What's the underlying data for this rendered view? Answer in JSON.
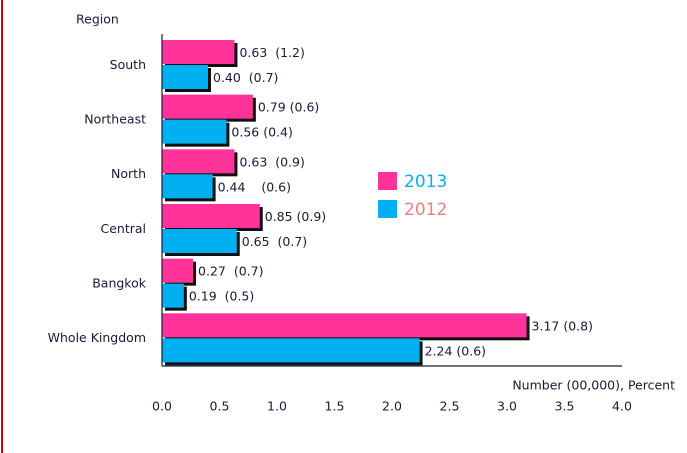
{
  "chart_data": {
    "type": "bar",
    "orientation": "horizontal",
    "y_axis_title": "Region",
    "x_axis_title": "Number (00,000), Percent",
    "categories": [
      "South",
      "Northeast",
      "North",
      "Central",
      "Bangkok",
      "Whole Kingdom"
    ],
    "series": [
      {
        "name": "2013",
        "color": "#ff3399",
        "values": [
          0.63,
          0.79,
          0.63,
          0.85,
          0.27,
          3.17
        ],
        "value_labels": [
          "0.63  (1.2)",
          "0.79 (0.6)",
          "0.63  (0.9)",
          "0.85 (0.9)",
          "0.27  (0.7)",
          "3.17 (0.8)"
        ]
      },
      {
        "name": "2012",
        "color": "#00b0f0",
        "values": [
          0.4,
          0.56,
          0.44,
          0.65,
          0.19,
          2.24
        ],
        "value_labels": [
          "0.40  (0.7)",
          "0.56 (0.4)",
          "0.44    (0.6)",
          "0.65  (0.7)",
          "0.19  (0.5)",
          "2.24 (0.6)"
        ]
      }
    ],
    "xlim": [
      0,
      4
    ],
    "xticks": [
      {
        "value": 0,
        "label": "0.0"
      },
      0.5,
      {
        "value": 1,
        "label": "1.0"
      },
      1.5,
      {
        "value": 2,
        "label": "2.0"
      },
      2.5,
      {
        "value": 3,
        "label": "3.0"
      },
      3.5,
      {
        "value": 4,
        "label": "4.0"
      }
    ],
    "grid": false
  }
}
